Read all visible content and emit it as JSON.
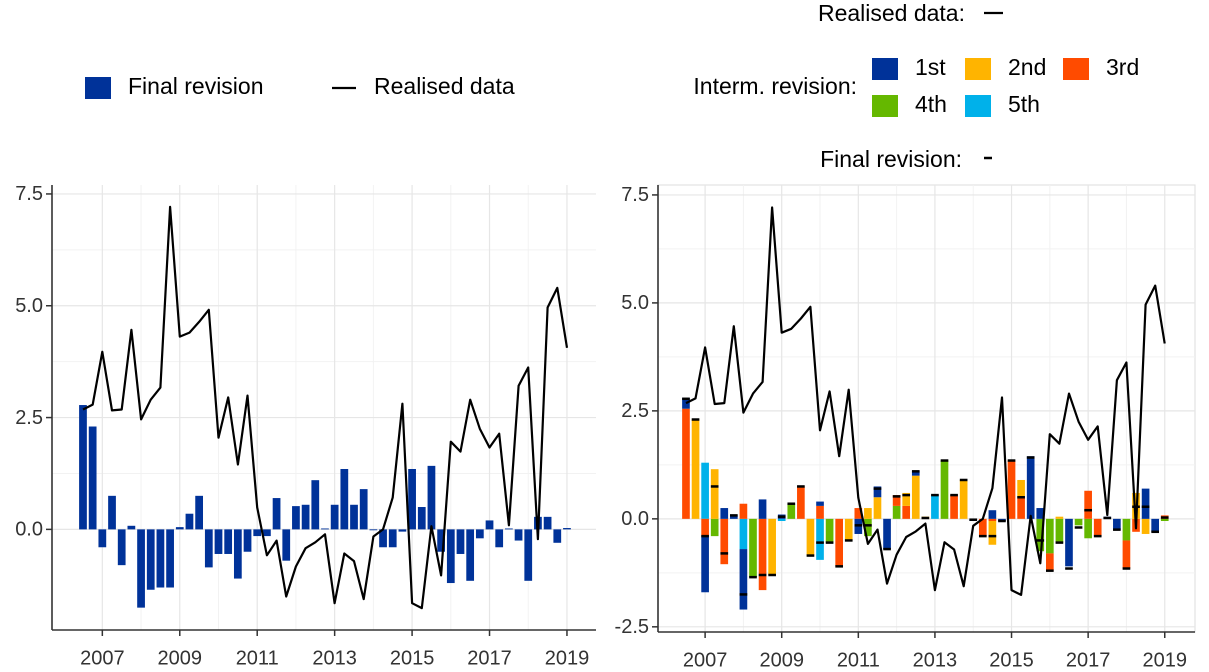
{
  "chart_data": [
    {
      "type": "bar",
      "x": [
        2006.5,
        2006.75,
        2007,
        2007.25,
        2007.5,
        2007.75,
        2008,
        2008.25,
        2008.5,
        2008.75,
        2009,
        2009.25,
        2009.5,
        2009.75,
        2010,
        2010.25,
        2010.5,
        2010.75,
        2011,
        2011.25,
        2011.5,
        2011.75,
        2012,
        2012.25,
        2012.5,
        2012.75,
        2013,
        2013.25,
        2013.5,
        2013.75,
        2014,
        2014.25,
        2014.5,
        2014.75,
        2015,
        2015.25,
        2015.5,
        2015.75,
        2016,
        2016.25,
        2016.5,
        2016.75,
        2017,
        2017.25,
        2017.5,
        2017.75,
        2018,
        2018.25,
        2018.5,
        2018.75,
        2019
      ],
      "xlim": [
        2005.7,
        2019.75
      ],
      "xticks": [
        2007,
        2009,
        2011,
        2013,
        2015,
        2017,
        2019
      ],
      "ylim": [
        -2.25,
        7.7
      ],
      "yticks": [
        {
          "value": 0,
          "label": "0.0"
        },
        2.5,
        {
          "value": 5,
          "label": "5.0"
        },
        7.5
      ],
      "grid": true,
      "series": [
        {
          "name": "Final revision",
          "kind": "bar",
          "color": "#003299",
          "values": [
            2.78,
            2.3,
            -0.4,
            0.75,
            -0.8,
            0.08,
            -1.75,
            -1.35,
            -1.3,
            -1.3,
            0.05,
            0.35,
            0.75,
            -0.85,
            -0.55,
            -0.55,
            -1.1,
            -0.5,
            -0.15,
            -0.15,
            0.7,
            -0.7,
            0.52,
            0.55,
            1.1,
            0.02,
            0.55,
            1.35,
            0.55,
            0.9,
            -0.02,
            -0.4,
            -0.4,
            -0.05,
            1.35,
            0.5,
            1.42,
            -0.5,
            -1.2,
            -0.55,
            -1.15,
            -0.2,
            0.2,
            -0.4,
            0.02,
            -0.25,
            -1.15,
            0.28,
            0.28,
            -0.3,
            0.03
          ]
        },
        {
          "name": "Realised data",
          "kind": "line",
          "color": "#000000",
          "values": [
            2.68,
            2.79,
            3.97,
            2.66,
            2.68,
            4.46,
            2.46,
            2.9,
            3.17,
            7.21,
            4.31,
            4.4,
            4.64,
            4.91,
            2.05,
            2.95,
            1.45,
            2.99,
            0.49,
            -0.58,
            -0.25,
            -1.5,
            -0.83,
            -0.42,
            -0.29,
            -0.11,
            -1.65,
            -0.54,
            -0.71,
            -1.56,
            -0.16,
            0.0,
            0.71,
            2.81,
            -1.65,
            -1.76,
            0.07,
            -1.03,
            1.96,
            1.74,
            2.9,
            2.25,
            1.83,
            2.14,
            0.09,
            3.21,
            3.62,
            -0.22,
            4.96,
            5.4,
            4.06
          ]
        }
      ]
    },
    {
      "type": "stacked-bar",
      "x": [
        2006.5,
        2006.75,
        2007,
        2007.25,
        2007.5,
        2007.75,
        2008,
        2008.25,
        2008.5,
        2008.75,
        2009,
        2009.25,
        2009.5,
        2009.75,
        2010,
        2010.25,
        2010.5,
        2010.75,
        2011,
        2011.25,
        2011.5,
        2011.75,
        2012,
        2012.25,
        2012.5,
        2012.75,
        2013,
        2013.25,
        2013.5,
        2013.75,
        2014,
        2014.25,
        2014.5,
        2014.75,
        2015,
        2015.25,
        2015.5,
        2015.75,
        2016,
        2016.25,
        2016.5,
        2016.75,
        2017,
        2017.25,
        2017.5,
        2017.75,
        2018,
        2018.25,
        2018.5,
        2018.75,
        2019
      ],
      "xlim": [
        2005.77,
        2019.79
      ],
      "xticks": [
        2007,
        2009,
        2011,
        2013,
        2015,
        2017,
        2019
      ],
      "ylim": [
        -2.62,
        7.73
      ],
      "yticks": [
        -2.5,
        {
          "value": 0,
          "label": "0.0"
        },
        2.5,
        {
          "value": 5,
          "label": "5.0"
        },
        7.5
      ],
      "grid": true,
      "legend_group_title": "Interm. revision:",
      "series": [
        {
          "name": "1st",
          "kind": "bar",
          "color": "#003299",
          "values": [
            0.25,
            0,
            -1.3,
            0,
            0.25,
            0.08,
            -1.4,
            0,
            0.45,
            0,
            0.1,
            0,
            0,
            0,
            0.1,
            0,
            0,
            0,
            -0.35,
            0,
            0.25,
            -0.7,
            0,
            0,
            0.1,
            0,
            0,
            0,
            0,
            0,
            -0.05,
            0,
            0.2,
            -0.05,
            0,
            0,
            1.45,
            0.25,
            0,
            0,
            -1.1,
            0,
            0,
            0,
            0.05,
            -0.25,
            0,
            0,
            0.7,
            -0.3,
            0
          ]
        },
        {
          "name": "2nd",
          "kind": "bar",
          "color": "#ffb400",
          "values": [
            0,
            2.3,
            0,
            1.15,
            0,
            0,
            0,
            0,
            0,
            -1.3,
            0,
            0,
            0,
            -0.85,
            0,
            0,
            0,
            -0.5,
            0,
            0.25,
            0.5,
            0,
            0,
            0.3,
            1.0,
            0.05,
            0,
            0,
            0,
            0.9,
            0,
            0,
            -0.55,
            0,
            0,
            0.4,
            0,
            0,
            0,
            0.05,
            0,
            0,
            0,
            0,
            0,
            0,
            0,
            0.6,
            -0.35,
            0,
            0
          ]
        },
        {
          "name": "3rd",
          "kind": "bar",
          "color": "#ff4b00",
          "values": [
            2.55,
            0,
            -0.4,
            0,
            -1.05,
            0,
            0.35,
            0,
            -1.65,
            0,
            0,
            0,
            0.75,
            0,
            0.3,
            0,
            -1.1,
            0,
            0.25,
            0,
            0,
            0,
            0.25,
            0.3,
            0,
            0,
            0,
            0,
            0.55,
            0,
            0,
            -0.4,
            -0.05,
            0,
            1.35,
            0.5,
            0,
            0,
            -0.4,
            0,
            0,
            0,
            0.65,
            -0.4,
            0,
            0,
            -0.65,
            -0.3,
            0,
            0,
            0.08
          ]
        },
        {
          "name": "4th",
          "kind": "bar",
          "color": "#65b800",
          "values": [
            0,
            0,
            0,
            -0.4,
            0,
            0,
            0,
            -1.35,
            0,
            0,
            0,
            0.35,
            0,
            0,
            0,
            -0.55,
            0,
            0,
            0,
            -0.4,
            0,
            0,
            0.3,
            0,
            0,
            0,
            0,
            1.35,
            0,
            0,
            0,
            0,
            0,
            0,
            0,
            0,
            0,
            -0.75,
            -0.8,
            -0.55,
            0,
            -0.15,
            -0.45,
            0,
            0,
            0,
            -0.5,
            0,
            0,
            0,
            -0.05
          ]
        },
        {
          "name": "5th",
          "kind": "bar",
          "color": "#00b1ea",
          "values": [
            0,
            0,
            1.3,
            0,
            0,
            0,
            -0.7,
            0,
            0,
            0,
            -0.05,
            0,
            0,
            0,
            -0.95,
            0,
            0,
            0,
            0,
            0,
            0,
            0,
            0,
            0,
            0,
            0,
            0.55,
            0,
            0,
            0,
            0,
            0,
            0,
            0,
            0,
            0,
            0,
            0,
            0,
            0,
            0,
            0,
            0,
            0,
            0,
            0,
            0,
            0,
            0,
            0,
            0
          ]
        },
        {
          "name": "Realised data:",
          "kind": "line",
          "color": "#000000",
          "values": [
            2.68,
            2.79,
            3.97,
            2.66,
            2.68,
            4.46,
            2.46,
            2.9,
            3.17,
            7.21,
            4.31,
            4.4,
            4.64,
            4.91,
            2.05,
            2.95,
            1.45,
            2.99,
            0.49,
            -0.58,
            -0.25,
            -1.5,
            -0.83,
            -0.42,
            -0.29,
            -0.11,
            -1.65,
            -0.54,
            -0.71,
            -1.56,
            -0.16,
            0.0,
            0.71,
            2.81,
            -1.65,
            -1.76,
            0.07,
            -1.03,
            1.96,
            1.74,
            2.9,
            2.25,
            1.83,
            2.14,
            0.09,
            3.21,
            3.62,
            -0.22,
            4.96,
            5.4,
            4.06
          ]
        },
        {
          "name": "Final revision:",
          "kind": "tick",
          "color": "#000000",
          "values": [
            2.78,
            2.3,
            -0.4,
            0.75,
            -0.8,
            0.08,
            -1.75,
            -1.35,
            -1.3,
            -1.3,
            0.05,
            0.35,
            0.75,
            -0.85,
            -0.55,
            -0.55,
            -1.1,
            -0.5,
            -0.15,
            -0.15,
            0.7,
            -0.7,
            0.52,
            0.55,
            1.1,
            0.02,
            0.55,
            1.35,
            0.55,
            0.9,
            -0.02,
            -0.4,
            -0.4,
            -0.05,
            1.35,
            0.5,
            1.42,
            -0.5,
            -1.2,
            -0.55,
            -1.15,
            -0.2,
            0.2,
            -0.4,
            0.02,
            -0.25,
            -1.15,
            0.28,
            0.28,
            -0.3,
            0.03
          ]
        }
      ]
    }
  ]
}
